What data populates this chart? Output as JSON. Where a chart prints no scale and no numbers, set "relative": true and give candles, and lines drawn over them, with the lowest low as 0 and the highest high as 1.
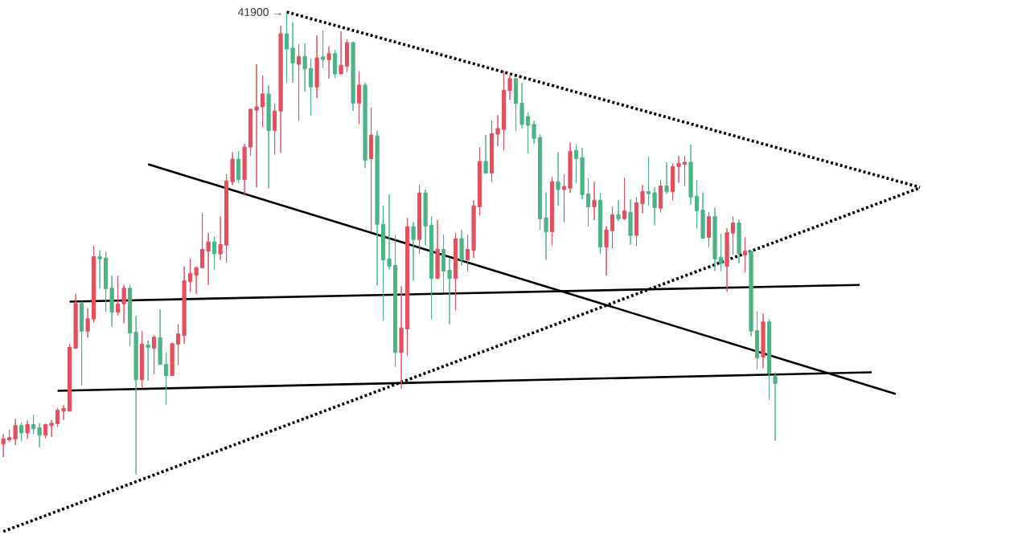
{
  "chart_data": {
    "type": "candlestick",
    "relative": true,
    "categories": [
      null,
      null,
      null,
      null,
      null,
      null,
      null,
      null,
      null,
      null,
      null,
      null,
      null,
      null,
      null,
      null,
      null,
      null,
      null,
      null,
      null,
      null,
      null,
      null,
      null,
      null,
      null,
      null,
      null,
      null,
      null,
      null,
      null,
      null,
      null,
      null,
      null,
      null,
      null,
      null,
      null,
      null,
      null,
      null,
      null,
      null,
      null,
      null,
      null,
      null,
      null,
      null,
      null,
      null,
      null,
      null,
      null,
      null,
      null,
      null,
      null,
      null,
      null,
      null,
      null,
      null,
      null,
      null,
      null,
      null,
      null,
      null,
      null,
      null,
      null,
      null,
      null,
      null,
      null,
      null,
      null,
      null,
      null,
      null,
      null,
      null,
      null,
      null,
      null,
      null,
      null,
      null,
      null,
      null,
      null,
      null,
      null,
      null,
      null,
      null,
      null,
      null,
      null,
      null,
      null,
      null,
      null,
      null,
      null,
      null,
      null,
      null,
      null,
      null,
      null,
      null,
      null,
      null,
      null,
      null,
      null,
      null,
      null,
      null,
      null,
      null,
      null,
      null,
      null,
      null,
      null,
      null,
      null,
      null,
      null,
      null,
      null,
      null,
      null,
      null,
      null,
      null,
      null,
      null,
      null,
      null,
      null,
      null,
      null,
      null,
      null,
      null,
      null
    ],
    "ohlc": [
      [
        0.066,
        0.087,
        0.038,
        0.077
      ],
      [
        0.075,
        0.097,
        0.071,
        0.08
      ],
      [
        0.077,
        0.12,
        0.064,
        0.106
      ],
      [
        0.106,
        0.113,
        0.073,
        0.09
      ],
      [
        0.09,
        0.117,
        0.077,
        0.108
      ],
      [
        0.108,
        0.129,
        0.087,
        0.099
      ],
      [
        0.101,
        0.111,
        0.059,
        0.085
      ],
      [
        0.085,
        0.11,
        0.078,
        0.108
      ],
      [
        0.106,
        0.118,
        0.082,
        0.111
      ],
      [
        0.11,
        0.144,
        0.103,
        0.139
      ],
      [
        0.137,
        0.15,
        0.118,
        0.143
      ],
      [
        0.137,
        0.283,
        0.137,
        0.275
      ],
      [
        0.273,
        0.39,
        0.273,
        0.37
      ],
      [
        0.37,
        0.374,
        0.193,
        0.31
      ],
      [
        0.31,
        0.36,
        0.296,
        0.337
      ],
      [
        0.336,
        0.494,
        0.329,
        0.471
      ],
      [
        0.471,
        0.485,
        0.402,
        0.466
      ],
      [
        0.468,
        0.482,
        0.351,
        0.402
      ],
      [
        0.403,
        0.43,
        0.32,
        0.351
      ],
      [
        0.351,
        0.43,
        0.344,
        0.369
      ],
      [
        0.369,
        0.41,
        0.327,
        0.403
      ],
      [
        0.403,
        0.41,
        0.278,
        0.306
      ],
      [
        0.308,
        0.343,
        0,
        0.205
      ],
      [
        0.205,
        0.31,
        0.188,
        0.282
      ],
      [
        0.28,
        0.29,
        0.203,
        0.275
      ],
      [
        0.273,
        0.301,
        0.217,
        0.297
      ],
      [
        0.296,
        0.357,
        0.238,
        0.238
      ],
      [
        0.238,
        0.264,
        0.151,
        0.214
      ],
      [
        0.214,
        0.285,
        0.214,
        0.283
      ],
      [
        0.282,
        0.325,
        0.237,
        0.304
      ],
      [
        0.301,
        0.45,
        0.283,
        0.419
      ],
      [
        0.417,
        0.466,
        0.395,
        0.435
      ],
      [
        0.431,
        0.45,
        0.391,
        0.447
      ],
      [
        0.447,
        0.565,
        0.447,
        0.487
      ],
      [
        0.483,
        0.522,
        0.41,
        0.503
      ],
      [
        0.503,
        0.515,
        0.443,
        0.477
      ],
      [
        0.477,
        0.558,
        0.464,
        0.497
      ],
      [
        0.496,
        0.649,
        0.459,
        0.635
      ],
      [
        0.633,
        0.697,
        0.626,
        0.682
      ],
      [
        0.682,
        0.699,
        0.63,
        0.638
      ],
      [
        0.638,
        0.715,
        0.603,
        0.708
      ],
      [
        0.708,
        0.79,
        0.689,
        0.79
      ],
      [
        0.788,
        0.887,
        0.621,
        0.795
      ],
      [
        0.795,
        0.863,
        0.751,
        0.823
      ],
      [
        0.823,
        0.842,
        0.619,
        0.744
      ],
      [
        0.744,
        0.802,
        0.692,
        0.786
      ],
      [
        0.786,
        0.97,
        0.696,
        0.953
      ],
      [
        0.953,
        1,
        0.847,
        0.92
      ],
      [
        0.922,
        0.977,
        0.847,
        0.89
      ],
      [
        0.887,
        0.93,
        0.765,
        0.904
      ],
      [
        0.904,
        0.932,
        0.828,
        0.877
      ],
      [
        0.878,
        0.899,
        0.776,
        0.838
      ],
      [
        0.838,
        0.95,
        0.814,
        0.901
      ],
      [
        0.903,
        0.96,
        0.878,
        0.897
      ],
      [
        0.897,
        0.925,
        0.856,
        0.91
      ],
      [
        0.91,
        0.918,
        0.857,
        0.866
      ],
      [
        0.866,
        0.958,
        0.866,
        0.885
      ],
      [
        0.883,
        0.941,
        0.87,
        0.934
      ],
      [
        0.934,
        0.936,
        0.786,
        0.803
      ],
      [
        0.803,
        0.871,
        0.758,
        0.842
      ],
      [
        0.842,
        0.847,
        0.663,
        0.68
      ],
      [
        0.683,
        0.793,
        0.525,
        0.734
      ],
      [
        0.732,
        0.743,
        0.409,
        0.541
      ],
      [
        0.541,
        0.581,
        0.334,
        0.464
      ],
      [
        0.466,
        0.605,
        0.443,
        0.45
      ],
      [
        0.452,
        0.518,
        0.233,
        0.264
      ],
      [
        0.264,
        0.407,
        0.186,
        0.317
      ],
      [
        0.315,
        0.555,
        0.257,
        0.536
      ],
      [
        0.536,
        0.546,
        0.419,
        0.508
      ],
      [
        0.508,
        0.626,
        0.477,
        0.609
      ],
      [
        0.609,
        0.616,
        0.496,
        0.537
      ],
      [
        0.539,
        0.558,
        0.336,
        0.424
      ],
      [
        0.424,
        0.55,
        0.424,
        0.487
      ],
      [
        0.487,
        0.518,
        0.393,
        0.44
      ],
      [
        0.442,
        0.468,
        0.325,
        0.424
      ],
      [
        0.424,
        0.523,
        0.355,
        0.51
      ],
      [
        0.51,
        0.529,
        0.452,
        0.464
      ],
      [
        0.464,
        0.518,
        0.44,
        0.487
      ],
      [
        0.485,
        0.593,
        0.468,
        0.581
      ],
      [
        0.579,
        0.708,
        0.56,
        0.677
      ],
      [
        0.677,
        0.734,
        0.65,
        0.652
      ],
      [
        0.652,
        0.765,
        0.633,
        0.737
      ],
      [
        0.736,
        0.777,
        0.71,
        0.748
      ],
      [
        0.746,
        0.873,
        0.701,
        0.831
      ],
      [
        0.83,
        0.864,
        0.81,
        0.856
      ],
      [
        0.856,
        0.856,
        0.743,
        0.802
      ],
      [
        0.803,
        0.847,
        0.748,
        0.757
      ],
      [
        0.774,
        0.783,
        0.694,
        0.755
      ],
      [
        0.757,
        0.765,
        0.715,
        0.727
      ],
      [
        0.729,
        0.736,
        0.529,
        0.553
      ],
      [
        0.555,
        0.61,
        0.464,
        0.525
      ],
      [
        0.525,
        0.643,
        0.496,
        0.633
      ],
      [
        0.633,
        0.697,
        0.581,
        0.616
      ],
      [
        0.616,
        0.649,
        0.546,
        0.623
      ],
      [
        0.619,
        0.718,
        0.609,
        0.699
      ],
      [
        0.701,
        0.715,
        0.631,
        0.683
      ],
      [
        0.685,
        0.706,
        0.595,
        0.605
      ],
      [
        0.607,
        0.64,
        0.537,
        0.579
      ],
      [
        0.579,
        0.633,
        0.55,
        0.593
      ],
      [
        0.593,
        0.609,
        0.477,
        0.492
      ],
      [
        0.492,
        0.537,
        0.43,
        0.529
      ],
      [
        0.527,
        0.579,
        0.489,
        0.562
      ],
      [
        0.562,
        0.593,
        0.548,
        0.553
      ],
      [
        0.553,
        0.642,
        0.551,
        0.57
      ],
      [
        0.567,
        0.595,
        0.497,
        0.517
      ],
      [
        0.517,
        0.6,
        0.494,
        0.588
      ],
      [
        0.586,
        0.626,
        0.565,
        0.612
      ],
      [
        0.612,
        0.687,
        0.581,
        0.607
      ],
      [
        0.609,
        0.621,
        0.539,
        0.577
      ],
      [
        0.576,
        0.637,
        0.567,
        0.624
      ],
      [
        0.624,
        0.675,
        0.607,
        0.612
      ],
      [
        0.612,
        0.673,
        0.593,
        0.666
      ],
      [
        0.666,
        0.689,
        0.631,
        0.673
      ],
      [
        0.671,
        0.689,
        0.624,
        0.675
      ],
      [
        0.675,
        0.713,
        0.584,
        0.6
      ],
      [
        0.602,
        0.637,
        0.532,
        0.57
      ],
      [
        0.572,
        0.61,
        0.51,
        0.511
      ],
      [
        0.513,
        0.567,
        0.492,
        0.558
      ],
      [
        0.558,
        0.577,
        0.44,
        0.466
      ],
      [
        0.47,
        0.52,
        0.44,
        0.456
      ],
      [
        0.45,
        0.532,
        0.395,
        0.523
      ],
      [
        0.522,
        0.558,
        0.475,
        0.544
      ],
      [
        0.544,
        0.551,
        0.457,
        0.478
      ],
      [
        0.475,
        0.513,
        0.438,
        0.483
      ],
      [
        0.483,
        0.483,
        0.299,
        0.31
      ],
      [
        0.311,
        0.353,
        0.228,
        0.252
      ],
      [
        0.254,
        0.348,
        0.23,
        0.33
      ],
      [
        0.33,
        0.336,
        0.162,
        0.219
      ],
      [
        0.212,
        0.221,
        0.073,
        0.197
      ],
      null,
      null,
      null,
      null,
      null,
      null,
      null,
      null,
      null,
      null,
      null,
      null,
      null,
      null,
      null,
      null,
      null,
      null,
      null,
      null,
      null,
      null,
      null,
      null
    ],
    "colors": [
      "#e2505f",
      "#e2505f",
      "#e2505f",
      "#4db385",
      "#e2505f",
      "#4db385",
      "#4db385",
      "#e2505f",
      "#e2505f",
      "#e2505f",
      "#e2505f",
      "#e2505f",
      "#e2505f",
      "#4db385",
      "#e2505f",
      "#e2505f",
      "#4db385",
      "#4db385",
      "#4db385",
      "#e2505f",
      "#e2505f",
      "#4db385",
      "#4db385",
      "#e2505f",
      "#4db385",
      "#e2505f",
      "#4db385",
      "#4db385",
      "#e2505f",
      "#e2505f",
      "#e2505f",
      "#e2505f",
      "#e2505f",
      "#e2505f",
      "#e2505f",
      "#4db385",
      "#e2505f",
      "#e2505f",
      "#e2505f",
      "#4db385",
      "#e2505f",
      "#e2505f",
      "#e2505f",
      "#e2505f",
      "#4db385",
      "#e2505f",
      "#e2505f",
      "#4db385",
      "#4db385",
      "#e2505f",
      "#4db385",
      "#4db385",
      "#e2505f",
      "#4db385",
      "#e2505f",
      "#4db385",
      "#e2505f",
      "#e2505f",
      "#4db385",
      "#e2505f",
      "#4db385",
      "#e2505f",
      "#4db385",
      "#4db385",
      "#4db385",
      "#4db385",
      "#e2505f",
      "#e2505f",
      "#4db385",
      "#e2505f",
      "#4db385",
      "#4db385",
      "#e2505f",
      "#4db385",
      "#4db385",
      "#e2505f",
      "#4db385",
      "#e2505f",
      "#e2505f",
      "#e2505f",
      "#4db385",
      "#e2505f",
      "#e2505f",
      "#e2505f",
      "#e2505f",
      "#4db385",
      "#4db385",
      "#4db385",
      "#4db385",
      "#4db385",
      "#4db385",
      "#e2505f",
      "#4db385",
      "#e2505f",
      "#e2505f",
      "#4db385",
      "#4db385",
      "#4db385",
      "#e2505f",
      "#4db385",
      "#e2505f",
      "#e2505f",
      "#4db385",
      "#e2505f",
      "#4db385",
      "#e2505f",
      "#e2505f",
      "#4db385",
      "#4db385",
      "#e2505f",
      "#4db385",
      "#e2505f",
      "#e2505f",
      "#e2505f",
      "#4db385",
      "#4db385",
      "#4db385",
      "#e2505f",
      "#4db385",
      "#4db385",
      "#e2505f",
      "#e2505f",
      "#4db385",
      "#e2505f",
      "#4db385",
      "#4db385",
      "#e2505f",
      "#4db385",
      "#4db385",
      null,
      null,
      null,
      null,
      null,
      null,
      null,
      null,
      null,
      null,
      null,
      null,
      null,
      null,
      null,
      null,
      null,
      null,
      null,
      null,
      null,
      null,
      null,
      null
    ],
    "series": [
      {
        "type": "line",
        "color": "#000000",
        "line_style": "dotted",
        "values": [
          null,
          null,
          null,
          null,
          null,
          null,
          null,
          null,
          null,
          null,
          null,
          null,
          null,
          null,
          null,
          null,
          null,
          null,
          null,
          null,
          null,
          null,
          null,
          null,
          null,
          null,
          null,
          null,
          null,
          null,
          null,
          null,
          null,
          null,
          null,
          null,
          null,
          null,
          null,
          null,
          null,
          null,
          null,
          null,
          null,
          null,
          null,
          1,
          null,
          null,
          null,
          null,
          null,
          null,
          null,
          null,
          null,
          null,
          null,
          null,
          null,
          null,
          null,
          null,
          null,
          null,
          null,
          null,
          null,
          null,
          null,
          null,
          null,
          null,
          null,
          null,
          null,
          null,
          null,
          null,
          null,
          null,
          null,
          null,
          null,
          null,
          null,
          null,
          null,
          null,
          null,
          null,
          null,
          null,
          null,
          null,
          null,
          null,
          null,
          null,
          null,
          null,
          null,
          null,
          null,
          null,
          null,
          null,
          null,
          null,
          null,
          null,
          null,
          null,
          null,
          null,
          null,
          null,
          null,
          null,
          null,
          null,
          null,
          null,
          null,
          null,
          null,
          null,
          null,
          null,
          null,
          null,
          null,
          null,
          null,
          null,
          null,
          null,
          null,
          null,
          null,
          null,
          null,
          null,
          null,
          null,
          null,
          null,
          null,
          null,
          null,
          null,
          0.621
        ]
      },
      {
        "type": "line",
        "color": "#000000",
        "line_style": "dotted",
        "values": [
          -0.123,
          null,
          null,
          null,
          null,
          null,
          null,
          null,
          null,
          null,
          null,
          null,
          null,
          null,
          null,
          null,
          null,
          null,
          null,
          null,
          null,
          null,
          null,
          null,
          null,
          null,
          null,
          null,
          null,
          null,
          null,
          null,
          null,
          null,
          null,
          null,
          null,
          null,
          null,
          null,
          null,
          null,
          null,
          null,
          null,
          null,
          null,
          null,
          null,
          null,
          null,
          null,
          null,
          null,
          null,
          null,
          null,
          null,
          null,
          null,
          null,
          null,
          null,
          null,
          null,
          null,
          null,
          null,
          null,
          null,
          null,
          null,
          null,
          null,
          null,
          null,
          null,
          null,
          null,
          null,
          null,
          null,
          null,
          null,
          null,
          null,
          null,
          null,
          null,
          null,
          null,
          null,
          null,
          null,
          null,
          null,
          null,
          null,
          null,
          null,
          null,
          null,
          null,
          null,
          null,
          null,
          null,
          null,
          null,
          null,
          null,
          null,
          null,
          null,
          null,
          null,
          null,
          null,
          null,
          null,
          null,
          null,
          null,
          null,
          null,
          null,
          null,
          null,
          null,
          null,
          null,
          null,
          null,
          null,
          null,
          null,
          null,
          null,
          null,
          null,
          null,
          null,
          null,
          null,
          null,
          null,
          null,
          null,
          null,
          null,
          null,
          null,
          0.62
        ]
      },
      {
        "type": "line",
        "color": "#000000",
        "line_style": "solid",
        "values": [
          null,
          null,
          null,
          null,
          null,
          null,
          null,
          null,
          null,
          null,
          null,
          null,
          null,
          null,
          null,
          null,
          null,
          null,
          null,
          null,
          null,
          null,
          null,
          null,
          0.671,
          null,
          null,
          null,
          null,
          null,
          null,
          null,
          null,
          null,
          null,
          null,
          null,
          null,
          null,
          null,
          null,
          null,
          null,
          null,
          null,
          null,
          null,
          null,
          null,
          null,
          null,
          null,
          null,
          null,
          null,
          null,
          null,
          null,
          null,
          null,
          null,
          null,
          null,
          null,
          null,
          null,
          null,
          null,
          null,
          null,
          null,
          null,
          null,
          null,
          null,
          null,
          null,
          null,
          null,
          null,
          null,
          null,
          null,
          null,
          null,
          null,
          null,
          null,
          null,
          null,
          null,
          null,
          null,
          null,
          null,
          null,
          null,
          null,
          null,
          null,
          null,
          null,
          null,
          null,
          null,
          null,
          null,
          null,
          null,
          null,
          null,
          null,
          null,
          null,
          null,
          null,
          null,
          null,
          null,
          null,
          null,
          null,
          null,
          null,
          null,
          null,
          null,
          null,
          null,
          null,
          null,
          null,
          null,
          null,
          null,
          null,
          null,
          null,
          null,
          null,
          null,
          null,
          null,
          null,
          null,
          null,
          null,
          null,
          0.174,
          null,
          null,
          null,
          null
        ]
      },
      {
        "type": "line",
        "color": "#000000",
        "line_style": "solid",
        "values": [
          null,
          null,
          null,
          null,
          null,
          null,
          null,
          null,
          null,
          null,
          null,
          0.374,
          null,
          null,
          null,
          null,
          null,
          null,
          null,
          null,
          null,
          null,
          null,
          null,
          null,
          null,
          null,
          null,
          null,
          null,
          null,
          null,
          null,
          null,
          null,
          null,
          null,
          null,
          null,
          null,
          null,
          null,
          null,
          null,
          null,
          null,
          null,
          null,
          null,
          null,
          null,
          null,
          null,
          null,
          null,
          null,
          null,
          null,
          null,
          null,
          null,
          null,
          null,
          null,
          null,
          null,
          null,
          null,
          null,
          null,
          null,
          null,
          null,
          null,
          null,
          null,
          null,
          null,
          null,
          null,
          null,
          null,
          null,
          null,
          null,
          null,
          null,
          null,
          null,
          null,
          null,
          null,
          null,
          null,
          null,
          null,
          null,
          null,
          null,
          null,
          null,
          null,
          null,
          null,
          null,
          null,
          null,
          null,
          null,
          null,
          null,
          null,
          null,
          null,
          null,
          null,
          null,
          null,
          null,
          null,
          null,
          null,
          null,
          null,
          null,
          null,
          null,
          null,
          null,
          null,
          null,
          null,
          null,
          null,
          null,
          null,
          null,
          null,
          null,
          null,
          null,
          null,
          0.41,
          null,
          null,
          null,
          null,
          null,
          null,
          null,
          null,
          null,
          null
        ]
      },
      {
        "type": "line",
        "color": "#000000",
        "line_style": "solid",
        "values": [
          null,
          null,
          null,
          null,
          null,
          null,
          null,
          null,
          null,
          0.181,
          null,
          null,
          null,
          null,
          null,
          null,
          null,
          null,
          null,
          null,
          null,
          null,
          null,
          null,
          null,
          null,
          null,
          null,
          null,
          null,
          null,
          null,
          null,
          null,
          null,
          null,
          null,
          null,
          null,
          null,
          null,
          null,
          null,
          null,
          null,
          null,
          null,
          null,
          null,
          null,
          null,
          null,
          null,
          null,
          null,
          null,
          null,
          null,
          null,
          null,
          null,
          null,
          null,
          null,
          null,
          null,
          null,
          null,
          null,
          null,
          null,
          null,
          null,
          null,
          null,
          null,
          null,
          null,
          null,
          null,
          null,
          null,
          null,
          null,
          null,
          null,
          null,
          null,
          null,
          null,
          null,
          null,
          null,
          null,
          null,
          null,
          null,
          null,
          null,
          null,
          null,
          null,
          null,
          null,
          null,
          null,
          null,
          null,
          null,
          null,
          null,
          null,
          null,
          null,
          null,
          null,
          null,
          null,
          null,
          null,
          null,
          null,
          null,
          null,
          null,
          null,
          null,
          null,
          null,
          null,
          null,
          null,
          null,
          null,
          null,
          null,
          null,
          null,
          null,
          null,
          null,
          null,
          null,
          null,
          0.221,
          null,
          null,
          null,
          null,
          null,
          null,
          null,
          null
        ]
      }
    ],
    "annotations": [
      "41900 →"
    ]
  }
}
